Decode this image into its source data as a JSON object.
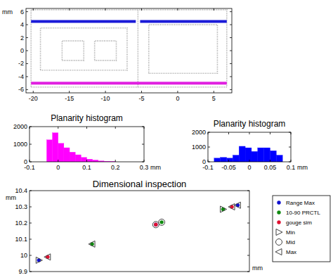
{
  "chart_data": [
    {
      "type": "line",
      "ylabel": "mm",
      "xlim": [
        -21,
        7.5
      ],
      "ylim": [
        -6.5,
        6.5
      ],
      "xticks": [
        -20,
        -15,
        -10,
        -5,
        0,
        5
      ],
      "yticks": [
        -6,
        -4,
        -2,
        0,
        2,
        4,
        6
      ],
      "grid": false,
      "series": [
        {
          "color": "#a0a0a0",
          "line_style": "dotted",
          "x": [
            -20.3,
            6.8,
            6.8,
            -20.3,
            -20.3,
            null,
            -5.5,
            -5.5,
            null,
            -19,
            -7,
            -7,
            -19,
            -19,
            null,
            -16,
            -13,
            -13,
            -16,
            -16,
            null,
            -11.5,
            -8.5,
            -8.5,
            -11.5,
            -11.5,
            null,
            -4,
            5.5,
            5.5,
            -4,
            -4
          ],
          "values": [
            -5.6,
            -5.6,
            6.3,
            6.3,
            -5.6,
            null,
            -5.6,
            6.3,
            null,
            -3,
            -3,
            3.5,
            3.5,
            -3,
            null,
            -1.5,
            -1.5,
            1.5,
            1.5,
            -1.5,
            null,
            -1.5,
            -1.5,
            1.5,
            1.5,
            -1.5,
            null,
            -3.5,
            -3.5,
            4,
            4,
            -3.5
          ]
        },
        {
          "color": "#1a1ad8",
          "line_style": "solid",
          "x": [
            -20.3,
            -5.8,
            null,
            -5.2,
            6.8
          ],
          "values": [
            4.5,
            4.5,
            null,
            4.5,
            4.5
          ]
        },
        {
          "color": "#e020e0",
          "line_style": "solid",
          "x": [
            -20.3,
            6.8
          ],
          "values": [
            -5,
            -5
          ]
        }
      ]
    },
    {
      "type": "histogram",
      "title": "Planarity histogram",
      "xlabel": "mm",
      "color": "#ff00ff",
      "bins": [
        -0.04,
        -0.02,
        0,
        0.02,
        0.04,
        0.06,
        0.08,
        0.1,
        0.12,
        0.14,
        0.16,
        0.18,
        0.2
      ],
      "values": [
        1250,
        1650,
        1050,
        800,
        550,
        400,
        250,
        150,
        100,
        50,
        30,
        20
      ],
      "xlim": [
        -0.1,
        0.3
      ],
      "xticks": [
        -0.1,
        0,
        0.1,
        0.2,
        0.3
      ],
      "ylim": [
        0,
        2000
      ],
      "yticks": [
        0,
        1000,
        2000
      ]
    },
    {
      "type": "histogram",
      "title": "Planarity histogram",
      "xlabel": "mm",
      "color": "#0000ff",
      "bins": [
        -0.085,
        -0.07,
        -0.055,
        -0.04,
        -0.025,
        -0.01,
        0.005,
        0.02,
        0.035,
        0.05,
        0.065,
        0.08
      ],
      "values": [
        250,
        300,
        250,
        450,
        1050,
        950,
        700,
        950,
        950,
        750,
        450
      ],
      "xlim": [
        -0.1,
        0.1
      ],
      "xticks": [
        -0.1,
        -0.05,
        0,
        0.05,
        0.1
      ],
      "ylim": [
        0,
        2000
      ],
      "yticks": [
        0,
        1000,
        2000
      ]
    },
    {
      "type": "scatter",
      "title": "Dimensional inspection",
      "xlabel": "mm",
      "ylabel": "mm",
      "xlim": [
        9.954,
        10.33
      ],
      "ylim": [
        9.9,
        10.4
      ],
      "yticks": [
        9.9,
        10,
        10.1,
        10.2,
        10.3,
        10.4
      ],
      "tick_labels": "y",
      "legend": "right",
      "grid": false,
      "series": [
        {
          "name": "Range Max",
          "color": "#1010d0",
          "marker": "dot",
          "x": [
            9.97,
            10.17,
            10.31
          ],
          "values": [
            9.97,
            10.19,
            10.31
          ]
        },
        {
          "name": "10-90 PRCTL",
          "color": "#108a10",
          "marker": "dot",
          "x": [
            10.061,
            10.18,
            10.285
          ],
          "values": [
            10.07,
            10.205,
            10.285
          ]
        },
        {
          "name": "gouge sim",
          "color": "#e01030",
          "marker": "dot",
          "x": [
            9.985,
            10.17,
            10.3
          ],
          "values": [
            9.99,
            10.19,
            10.3
          ]
        },
        {
          "name": "Min",
          "color": "#404040",
          "marker": "triangle-right",
          "x": [
            9.97,
            10.285
          ],
          "values": [
            9.97,
            10.285
          ]
        },
        {
          "name": "Mid",
          "color": "#404040",
          "marker": "circle",
          "x": [
            10.17,
            10.18
          ],
          "values": [
            10.19,
            10.205
          ]
        },
        {
          "name": "Max",
          "color": "#404040",
          "marker": "triangle-left",
          "x": [
            9.985,
            10.061,
            10.3,
            10.31
          ],
          "values": [
            9.99,
            10.07,
            10.3,
            10.31
          ]
        }
      ]
    }
  ]
}
